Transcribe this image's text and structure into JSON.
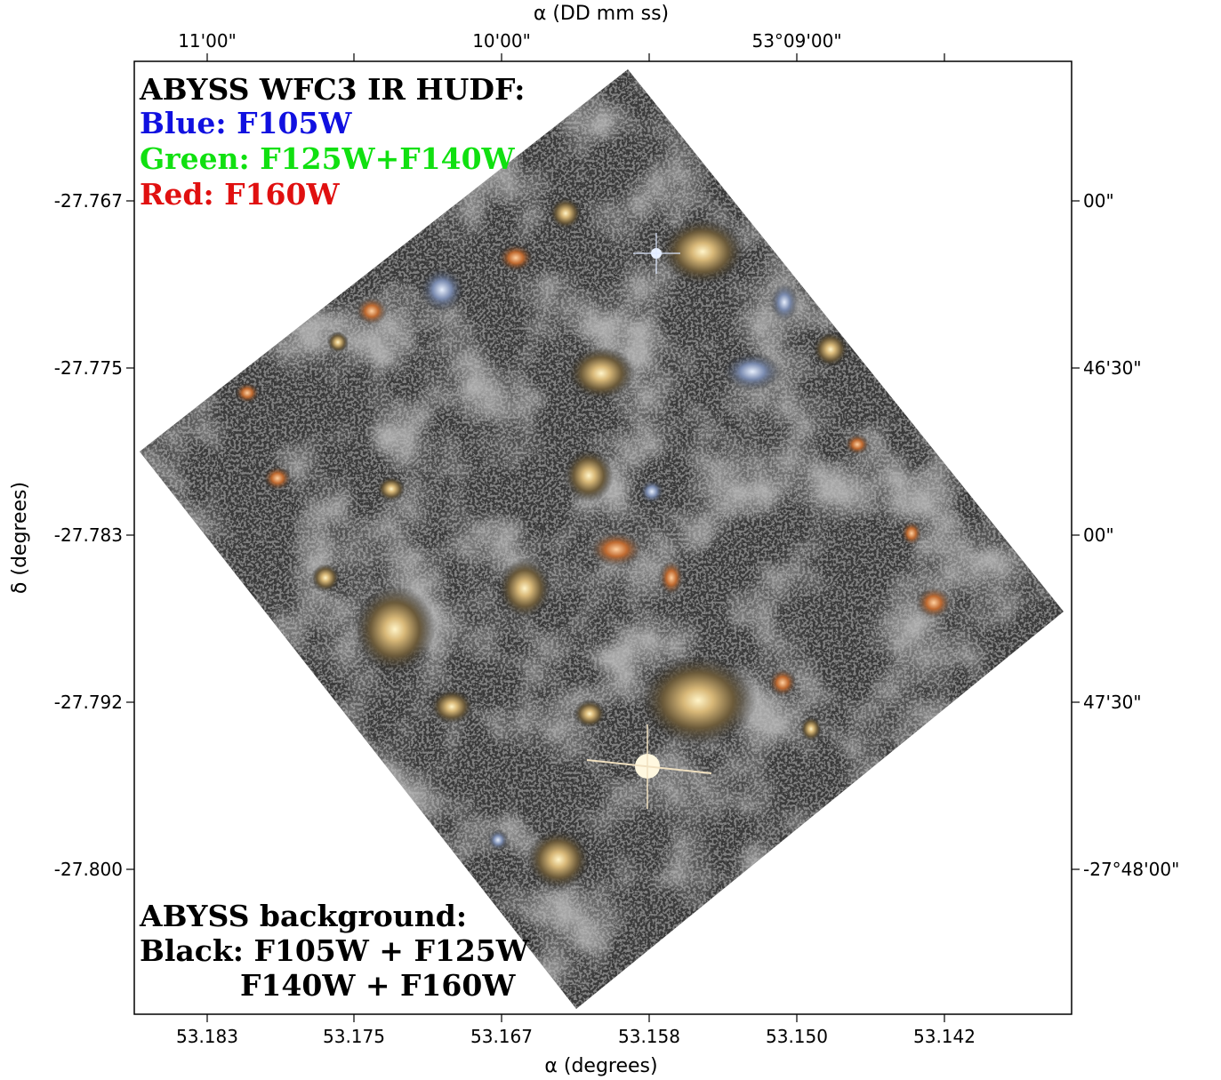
{
  "figure": {
    "top_axis_label": "α (DD mm ss)",
    "bottom_axis_label": "α (degrees)",
    "left_axis_label": "δ (degrees)",
    "top_ticks": [
      "11'00\"",
      "10'00\"",
      "53°09'00\""
    ],
    "bottom_ticks": [
      "53.183",
      "53.175",
      "53.167",
      "53.158",
      "53.150",
      "53.142"
    ],
    "left_ticks": [
      "-27.767",
      "-27.775",
      "-27.783",
      "-27.792",
      "-27.800"
    ],
    "right_ticks": [
      "00\"",
      "46'30\"",
      "00\"",
      "47'30\"",
      "-27°48'00\""
    ]
  },
  "legend_top": {
    "title": "ABYSS WFC3 IR HUDF:",
    "blue": "Blue: F105W",
    "green": "Green: F125W+F140W",
    "red": "Red: F160W",
    "colors": {
      "title": "#000000",
      "blue": "#1010e0",
      "green": "#10e010",
      "red": "#e01010"
    }
  },
  "legend_bottom": {
    "title": "ABYSS background:",
    "line1": "Black: F105W + F125W",
    "line2": "F140W + F160W"
  }
}
